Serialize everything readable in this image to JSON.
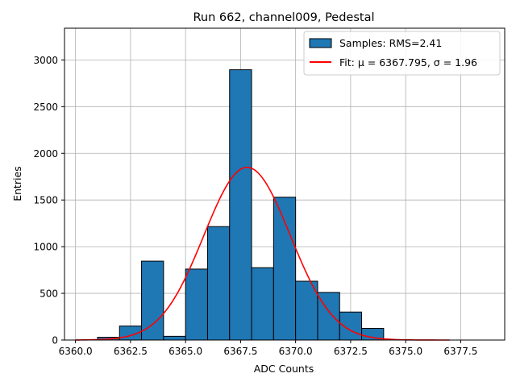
{
  "chart_data": {
    "type": "bar",
    "title": "Run 662, channel009, Pedestal",
    "xlabel": "ADC Counts",
    "ylabel": "Entries",
    "xlim": [
      6359.5,
      6379.5
    ],
    "ylim": [
      0,
      3340
    ],
    "grid": true,
    "legend_position": "top-right",
    "x_ticks": [
      6360.0,
      6362.5,
      6365.0,
      6367.5,
      6370.0,
      6372.5,
      6375.0,
      6377.5
    ],
    "x_tick_labels": [
      "6360.0",
      "6362.5",
      "6365.0",
      "6367.5",
      "6370.0",
      "6372.5",
      "6375.0",
      "6377.5"
    ],
    "y_ticks": [
      0,
      500,
      1000,
      1500,
      2000,
      2500,
      3000
    ],
    "y_tick_labels": [
      "0",
      "500",
      "1000",
      "1500",
      "2000",
      "2500",
      "3000"
    ],
    "histogram": {
      "name": "Samples: RMS=2.41",
      "color": "#1f77b4",
      "edge_color": "#000000",
      "bins": [
        {
          "x0": 6361.0,
          "x1": 6362.0,
          "count": 30
        },
        {
          "x0": 6362.0,
          "x1": 6363.0,
          "count": 150
        },
        {
          "x0": 6363.0,
          "x1": 6364.0,
          "count": 845
        },
        {
          "x0": 6364.0,
          "x1": 6365.0,
          "count": 40
        },
        {
          "x0": 6365.0,
          "x1": 6366.0,
          "count": 760
        },
        {
          "x0": 6366.0,
          "x1": 6367.0,
          "count": 1215
        },
        {
          "x0": 6367.0,
          "x1": 6368.0,
          "count": 2895
        },
        {
          "x0": 6368.0,
          "x1": 6369.0,
          "count": 775
        },
        {
          "x0": 6369.0,
          "x1": 6370.0,
          "count": 1530
        },
        {
          "x0": 6370.0,
          "x1": 6371.0,
          "count": 630
        },
        {
          "x0": 6371.0,
          "x1": 6372.0,
          "count": 510
        },
        {
          "x0": 6372.0,
          "x1": 6373.0,
          "count": 300
        },
        {
          "x0": 6373.0,
          "x1": 6374.0,
          "count": 125
        }
      ]
    },
    "fit": {
      "name": "Fit: μ = 6367.795, σ = 1.96",
      "color": "#ff0000",
      "mu": 6367.795,
      "sigma": 1.96,
      "amplitude": 1850,
      "x_range": [
        6360.0,
        6377.0
      ]
    }
  }
}
